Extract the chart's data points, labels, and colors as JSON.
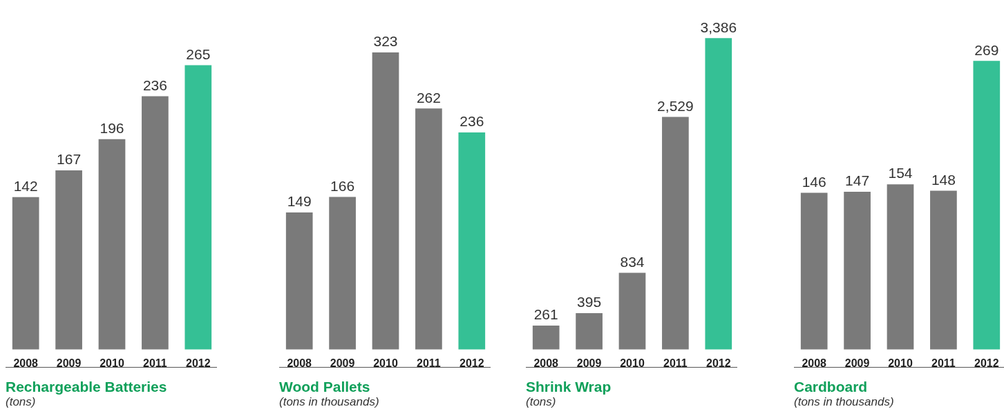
{
  "chart_data": [
    {
      "type": "bar",
      "title": "Rechargeable Batteries",
      "subtitle": "(tons)",
      "categories": [
        "2008",
        "2009",
        "2010",
        "2011",
        "2012"
      ],
      "values": [
        142,
        167,
        196,
        236,
        265
      ],
      "value_labels": [
        "142",
        "167",
        "196",
        "236",
        "265"
      ],
      "colors": [
        "#7a7a7a",
        "#7a7a7a",
        "#7a7a7a",
        "#7a7a7a",
        "#35c095"
      ],
      "tick_labels": "x"
    },
    {
      "type": "bar",
      "title": "Wood Pallets",
      "subtitle": "(tons in thousands)",
      "categories": [
        "2008",
        "2009",
        "2010",
        "2011",
        "2012"
      ],
      "values": [
        149,
        166,
        323,
        262,
        236
      ],
      "value_labels": [
        "149",
        "166",
        "323",
        "262",
        "236"
      ],
      "colors": [
        "#7a7a7a",
        "#7a7a7a",
        "#7a7a7a",
        "#7a7a7a",
        "#35c095"
      ],
      "tick_labels": "x"
    },
    {
      "type": "bar",
      "title": "Shrink Wrap",
      "subtitle": "(tons)",
      "categories": [
        "2008",
        "2009",
        "2010",
        "2011",
        "2012"
      ],
      "values": [
        261,
        395,
        834,
        2529,
        3386
      ],
      "value_labels": [
        "261",
        "395",
        "834",
        "2,529",
        "3,386"
      ],
      "colors": [
        "#7a7a7a",
        "#7a7a7a",
        "#7a7a7a",
        "#7a7a7a",
        "#35c095"
      ],
      "tick_labels": "x"
    },
    {
      "type": "bar",
      "title": "Cardboard",
      "subtitle": "(tons in thousands)",
      "categories": [
        "2008",
        "2009",
        "2010",
        "2011",
        "2012"
      ],
      "values": [
        146,
        147,
        154,
        148,
        269
      ],
      "value_labels": [
        "146",
        "147",
        "154",
        "148",
        "269"
      ],
      "colors": [
        "#7a7a7a",
        "#7a7a7a",
        "#7a7a7a",
        "#7a7a7a",
        "#35c095"
      ],
      "tick_labels": "x"
    }
  ]
}
